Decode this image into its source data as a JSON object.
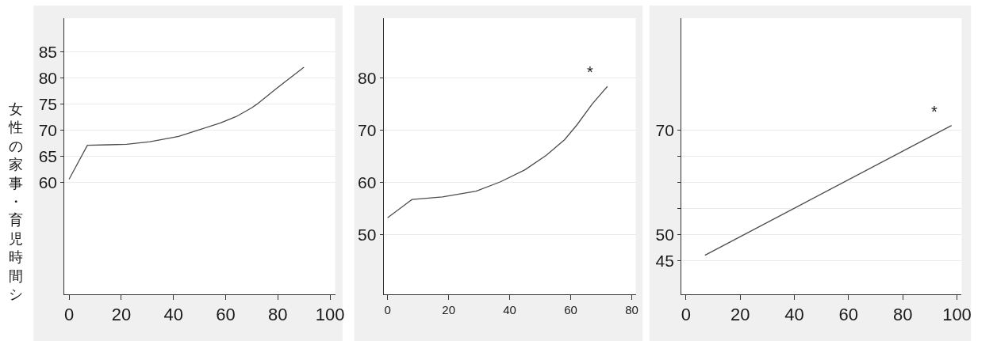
{
  "chart_data": [
    {
      "type": "line",
      "ylabel": "女性の家事・育児時間シ",
      "x": [
        0,
        7,
        15,
        22,
        31,
        42,
        50,
        58,
        64,
        70,
        72,
        80,
        90
      ],
      "values": [
        60.6,
        67.1,
        67.2,
        67.3,
        67.8,
        68.8,
        70.1,
        71.4,
        72.6,
        74.3,
        75.0,
        78.2,
        82.1
      ],
      "color": "#4d4d4d",
      "xlim": [
        -1.8,
        102
      ],
      "ylim": [
        38.5,
        91.5
      ],
      "xticks": [
        0,
        20,
        40,
        60,
        80,
        100
      ],
      "yticks": [
        60,
        65,
        70,
        75,
        80,
        85
      ],
      "grid": "y"
    },
    {
      "type": "line",
      "x": [
        0,
        8,
        18,
        29,
        37,
        45,
        52,
        58,
        62,
        67,
        72
      ],
      "values": [
        53.2,
        56.7,
        57.2,
        58.3,
        60.1,
        62.4,
        65.2,
        68.2,
        71.0,
        75.0,
        78.4
      ],
      "color": "#4d4d4d",
      "xlim": [
        -1.3,
        81.3
      ],
      "ylim": [
        38.5,
        91.5
      ],
      "xticks": [
        0,
        20,
        40,
        60,
        80
      ],
      "yticks": [
        50,
        60,
        70,
        80
      ],
      "grid": "y",
      "annotations": [
        "*"
      ]
    },
    {
      "type": "line",
      "x": [
        7,
        98
      ],
      "values": [
        46.0,
        70.9
      ],
      "color": "#4d4d4d",
      "xlim": [
        -1.7,
        101.7
      ],
      "ylim": [
        38.5,
        91.5
      ],
      "xticks": [
        0,
        20,
        40,
        60,
        80,
        100
      ],
      "yticks": [
        45,
        50,
        {
          "value": 55,
          "label": null
        },
        {
          "value": 60,
          "label": null
        },
        {
          "value": 65,
          "label": null
        },
        70
      ],
      "grid": "y",
      "annotations": [
        "*"
      ]
    }
  ]
}
